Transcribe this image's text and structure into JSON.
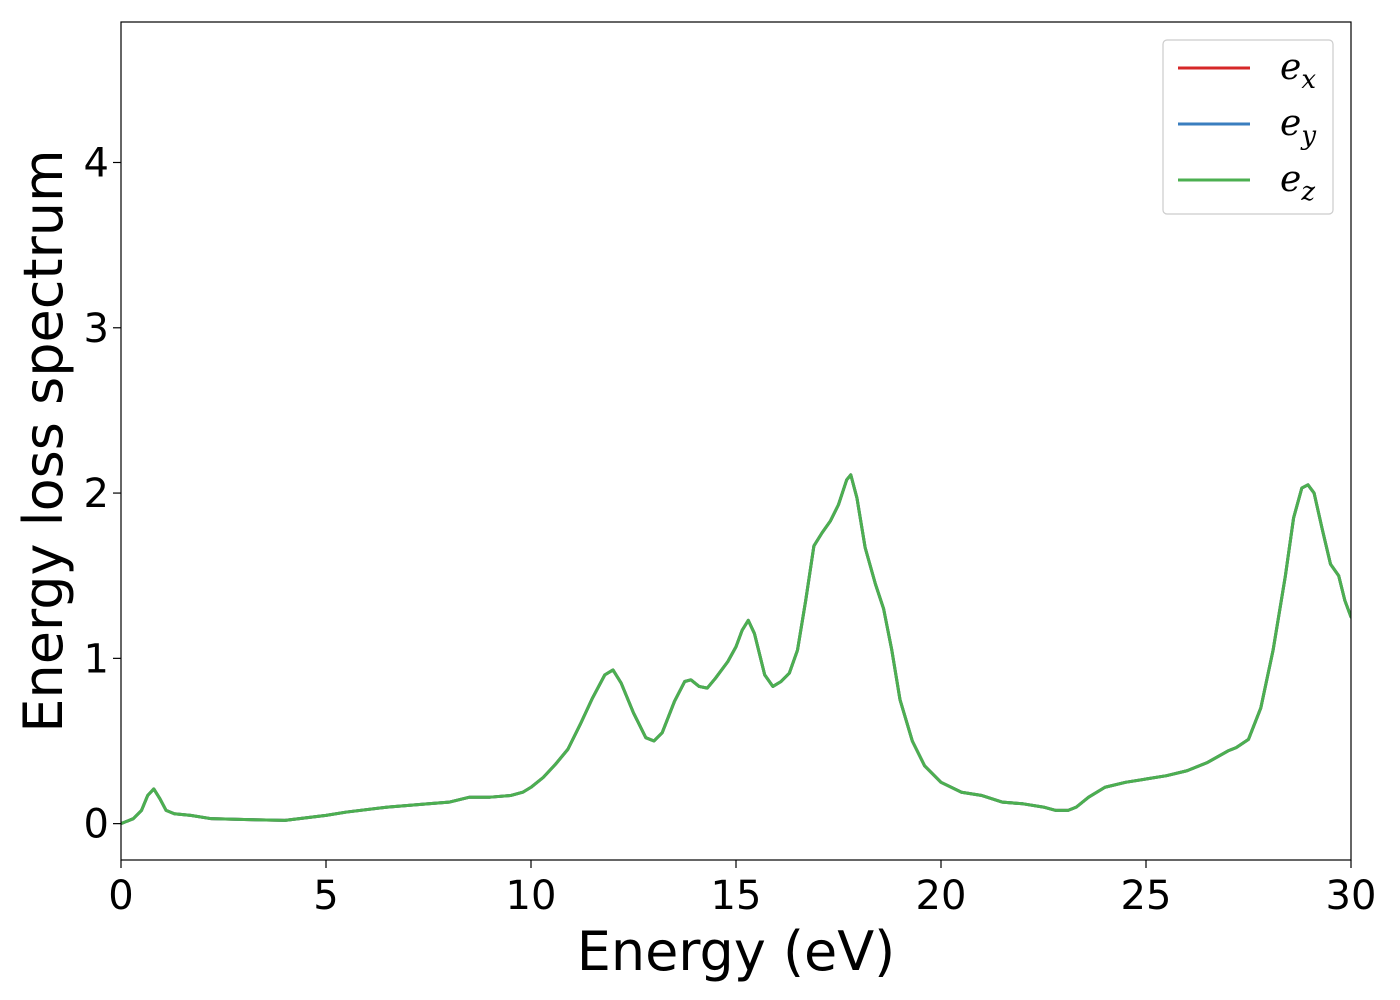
{
  "chart_data": {
    "type": "line",
    "title": "",
    "xlabel": "Energy (eV)",
    "ylabel": "Energy loss spectrum",
    "xlim": [
      0,
      30
    ],
    "ylim": [
      -0.22,
      4.85
    ],
    "xticks": [
      0,
      5,
      10,
      15,
      20,
      25,
      30
    ],
    "yticks": [
      0,
      1,
      2,
      3,
      4
    ],
    "grid": false,
    "legend_position": "top-right",
    "legend": [
      {
        "base": "e",
        "sub": "x",
        "color": "#d62728"
      },
      {
        "base": "e",
        "sub": "y",
        "color": "#3a7ebf"
      },
      {
        "base": "e",
        "sub": "z",
        "color": "#4caf50"
      }
    ],
    "x": [
      0,
      0.3,
      0.5,
      0.65,
      0.8,
      0.95,
      1.1,
      1.3,
      1.7,
      2.2,
      3.0,
      4.0,
      5.0,
      5.5,
      6.5,
      7.5,
      8.0,
      8.5,
      9.0,
      9.5,
      9.8,
      10.0,
      10.3,
      10.6,
      10.9,
      11.2,
      11.5,
      11.8,
      12.0,
      12.2,
      12.5,
      12.8,
      13.0,
      13.2,
      13.5,
      13.75,
      13.9,
      14.1,
      14.3,
      14.5,
      14.8,
      15.0,
      15.15,
      15.3,
      15.45,
      15.7,
      15.9,
      16.1,
      16.3,
      16.5,
      16.7,
      16.9,
      17.1,
      17.3,
      17.5,
      17.7,
      17.8,
      17.95,
      18.15,
      18.4,
      18.6,
      18.8,
      19.0,
      19.3,
      19.6,
      20.0,
      20.5,
      21.0,
      21.5,
      22.0,
      22.5,
      22.8,
      23.1,
      23.3,
      23.6,
      24.0,
      24.5,
      25.0,
      25.5,
      26.0,
      26.5,
      27.0,
      27.2,
      27.5,
      27.8,
      28.1,
      28.4,
      28.6,
      28.8,
      28.95,
      29.1,
      29.3,
      29.5,
      29.7,
      29.85,
      30.0
    ],
    "series": [
      {
        "name": "e_x",
        "color": "#d62728",
        "values": [
          0.0,
          0.03,
          0.08,
          0.17,
          0.21,
          0.15,
          0.08,
          0.06,
          0.05,
          0.03,
          0.025,
          0.02,
          0.05,
          0.07,
          0.1,
          0.12,
          0.13,
          0.16,
          0.16,
          0.17,
          0.19,
          0.22,
          0.28,
          0.36,
          0.45,
          0.6,
          0.76,
          0.9,
          0.93,
          0.85,
          0.67,
          0.52,
          0.5,
          0.55,
          0.74,
          0.86,
          0.87,
          0.83,
          0.82,
          0.88,
          0.98,
          1.07,
          1.17,
          1.23,
          1.15,
          0.9,
          0.83,
          0.86,
          0.91,
          1.05,
          1.35,
          1.68,
          1.76,
          1.83,
          1.93,
          2.08,
          2.11,
          1.97,
          1.67,
          1.45,
          1.3,
          1.05,
          0.75,
          0.5,
          0.35,
          0.25,
          0.19,
          0.17,
          0.13,
          0.12,
          0.1,
          0.08,
          0.08,
          0.1,
          0.16,
          0.22,
          0.25,
          0.27,
          0.29,
          0.32,
          0.37,
          0.44,
          0.46,
          0.51,
          0.7,
          1.05,
          1.5,
          1.85,
          2.03,
          2.05,
          2.0,
          1.78,
          1.57,
          1.5,
          1.35,
          1.25
        ]
      },
      {
        "name": "e_y",
        "color": "#3a7ebf",
        "values": [
          0.0,
          0.03,
          0.08,
          0.17,
          0.21,
          0.15,
          0.08,
          0.06,
          0.05,
          0.03,
          0.025,
          0.02,
          0.05,
          0.07,
          0.1,
          0.12,
          0.13,
          0.16,
          0.16,
          0.17,
          0.19,
          0.22,
          0.28,
          0.36,
          0.45,
          0.6,
          0.76,
          0.9,
          0.93,
          0.85,
          0.67,
          0.52,
          0.5,
          0.55,
          0.74,
          0.86,
          0.87,
          0.83,
          0.82,
          0.88,
          0.98,
          1.07,
          1.17,
          1.23,
          1.15,
          0.9,
          0.83,
          0.86,
          0.91,
          1.05,
          1.35,
          1.68,
          1.76,
          1.83,
          1.93,
          2.08,
          2.11,
          1.97,
          1.67,
          1.45,
          1.3,
          1.05,
          0.75,
          0.5,
          0.35,
          0.25,
          0.19,
          0.17,
          0.13,
          0.12,
          0.1,
          0.08,
          0.08,
          0.1,
          0.16,
          0.22,
          0.25,
          0.27,
          0.29,
          0.32,
          0.37,
          0.44,
          0.46,
          0.51,
          0.7,
          1.05,
          1.5,
          1.85,
          2.03,
          2.05,
          2.0,
          1.78,
          1.57,
          1.5,
          1.35,
          1.25
        ]
      },
      {
        "name": "e_z",
        "color": "#4caf50",
        "values": [
          0.0,
          0.03,
          0.08,
          0.17,
          0.21,
          0.15,
          0.08,
          0.06,
          0.05,
          0.03,
          0.025,
          0.02,
          0.05,
          0.07,
          0.1,
          0.12,
          0.13,
          0.16,
          0.16,
          0.17,
          0.19,
          0.22,
          0.28,
          0.36,
          0.45,
          0.6,
          0.76,
          0.9,
          0.93,
          0.85,
          0.67,
          0.52,
          0.5,
          0.55,
          0.74,
          0.86,
          0.87,
          0.83,
          0.82,
          0.88,
          0.98,
          1.07,
          1.17,
          1.23,
          1.15,
          0.9,
          0.83,
          0.86,
          0.91,
          1.05,
          1.35,
          1.68,
          1.76,
          1.83,
          1.93,
          2.08,
          2.11,
          1.97,
          1.67,
          1.45,
          1.3,
          1.05,
          0.75,
          0.5,
          0.35,
          0.25,
          0.19,
          0.17,
          0.13,
          0.12,
          0.1,
          0.08,
          0.08,
          0.1,
          0.16,
          0.22,
          0.25,
          0.27,
          0.29,
          0.32,
          0.37,
          0.44,
          0.46,
          0.51,
          0.7,
          1.05,
          1.5,
          1.85,
          2.03,
          2.05,
          2.0,
          1.78,
          1.57,
          1.5,
          1.35,
          1.25
        ]
      }
    ]
  }
}
